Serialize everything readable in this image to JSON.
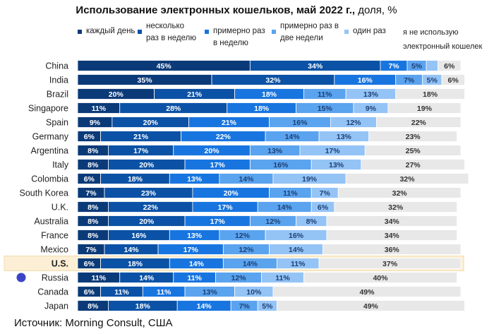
{
  "title": {
    "bold": "Использование электронных кошельков, май 2022 г.,",
    "normal": " доля, %"
  },
  "source": "Источник: Morning Consult, США",
  "chart_data": {
    "type": "bar",
    "orientation": "horizontal",
    "stacked": true,
    "legend_position": "top",
    "xlim": [
      0,
      100
    ],
    "highlighted": "U.S.",
    "marked": "Russia",
    "marker_color": "#3b44c8",
    "categories": [
      "China",
      "India",
      "Brazil",
      "Singapore",
      "Spain",
      "Germany",
      "Argentina",
      "Italy",
      "Colombia",
      "South Korea",
      "U.K.",
      "Australia",
      "France",
      "Mexico",
      "U.S.",
      "Russia",
      "Canada",
      "Japan"
    ],
    "series": [
      {
        "name": "каждый день",
        "color": "#0b3a78",
        "values": [
          45,
          35,
          20,
          11,
          9,
          6,
          8,
          8,
          6,
          7,
          8,
          8,
          8,
          7,
          6,
          11,
          6,
          8
        ]
      },
      {
        "name": "несколько раз в неделю",
        "color": "#0b52a6",
        "values": [
          34,
          32,
          21,
          28,
          20,
          21,
          17,
          20,
          18,
          23,
          22,
          20,
          16,
          14,
          18,
          14,
          11,
          18
        ]
      },
      {
        "name": "примерно раз в неделю",
        "color": "#1875e0",
        "values": [
          7,
          16,
          18,
          18,
          21,
          22,
          20,
          17,
          13,
          20,
          17,
          17,
          13,
          17,
          14,
          11,
          11,
          14
        ]
      },
      {
        "name": "примерно раз в две недели",
        "color": "#5aa3ef",
        "values": [
          5,
          7,
          11,
          15,
          16,
          14,
          13,
          16,
          14,
          11,
          14,
          12,
          12,
          12,
          14,
          12,
          13,
          7
        ]
      },
      {
        "name": "один раз",
        "color": "#94c3f6",
        "values": [
          3,
          5,
          13,
          9,
          12,
          13,
          17,
          13,
          19,
          7,
          6,
          8,
          16,
          14,
          11,
          11,
          10,
          5
        ]
      },
      {
        "name": "я не использую электронный кошелек",
        "color": "#e8e8e8",
        "values": [
          6,
          6,
          18,
          19,
          22,
          23,
          25,
          27,
          32,
          32,
          32,
          34,
          34,
          36,
          37,
          40,
          49,
          49
        ]
      }
    ]
  }
}
